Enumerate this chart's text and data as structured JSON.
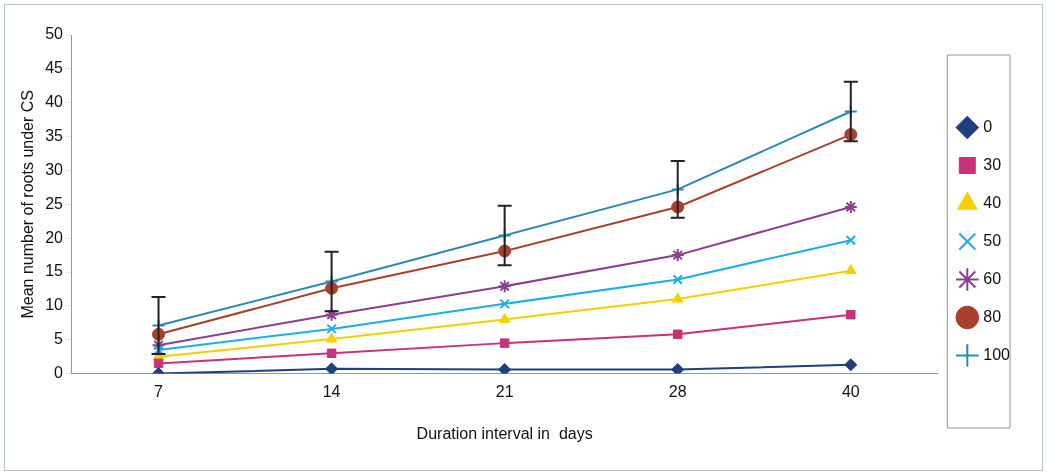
{
  "chart_data": {
    "type": "line",
    "xlabel": "Duration interval in  days",
    "ylabel": "Mean number of roots under CS",
    "categories": [
      "7",
      "14",
      "21",
      "28",
      "40"
    ],
    "series": [
      {
        "name": "0",
        "color": "#1f3f7f",
        "marker": "diamond",
        "values": [
          0,
          0.7,
          0.6,
          0.6,
          1.3
        ]
      },
      {
        "name": "30",
        "color": "#c8327a",
        "marker": "square",
        "values": [
          1.5,
          3,
          4.5,
          5.8,
          8.7
        ]
      },
      {
        "name": "40",
        "color": "#f5d000",
        "marker": "triangle",
        "values": [
          2.5,
          5.1,
          8,
          11,
          15.2
        ]
      },
      {
        "name": "50",
        "color": "#1aaeea",
        "marker": "x",
        "values": [
          3.5,
          6.6,
          10.3,
          13.9,
          19.7
        ]
      },
      {
        "name": "60",
        "color": "#8a3f8f",
        "marker": "cross",
        "values": [
          4.2,
          8.7,
          12.9,
          17.5,
          24.6
        ]
      },
      {
        "name": "80",
        "color": "#a8402e",
        "marker": "circle",
        "values": [
          5.8,
          12.6,
          18.1,
          24.6,
          35.3
        ]
      },
      {
        "name": "100",
        "color": "#2a8ab0",
        "marker": "plus",
        "values": [
          7.1,
          13.6,
          20.4,
          27.2,
          38.7
        ],
        "errors": [
          4.2,
          4.4,
          4.4,
          4.2,
          4.4
        ]
      }
    ],
    "ylim": [
      0,
      50
    ],
    "yticks": [
      0,
      5,
      10,
      15,
      20,
      25,
      30,
      35,
      40,
      45,
      50
    ],
    "grid": false,
    "legend": "right",
    "line_style": "solid"
  }
}
